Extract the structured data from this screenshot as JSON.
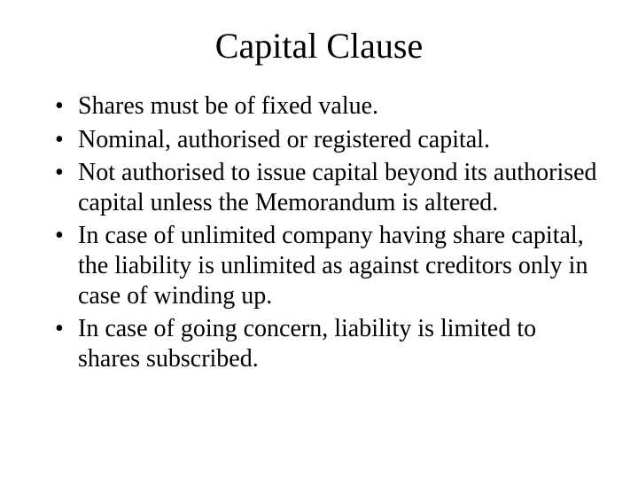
{
  "title": "Capital Clause",
  "bullets": [
    "Shares must be of fixed value.",
    "Nominal, authorised or registered capital.",
    "Not authorised to issue capital beyond its authorised capital unless the Memorandum is altered.",
    "In case of unlimited company having share capital, the liability is unlimited as against creditors only in case of winding up.",
    "In case of going concern, liability is limited to shares subscribed."
  ]
}
